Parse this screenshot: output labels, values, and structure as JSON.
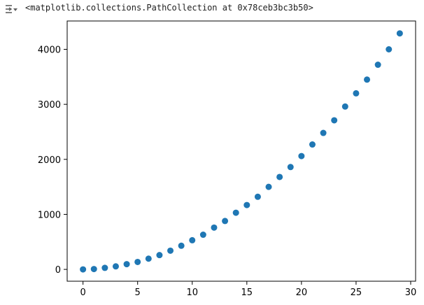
{
  "cell_output": {
    "toggle_icon": "collapse-output-icon",
    "repr_text": "<matplotlib.collections.PathCollection at 0x78ceb3bc3b50>"
  },
  "colors": {
    "marker": "#1f77b4",
    "axes": "#000000",
    "repr_text": "#212121"
  },
  "chart_data": {
    "type": "scatter",
    "title": "",
    "xlabel": "",
    "ylabel": "",
    "xlim": [
      -1.45,
      30.45
    ],
    "ylim": [
      -215,
      4515
    ],
    "xticks": [
      0,
      5,
      10,
      15,
      20,
      25,
      30
    ],
    "yticks": [
      0,
      1000,
      2000,
      3000,
      4000
    ],
    "grid": false,
    "legend": "none",
    "x": [
      0,
      1,
      2,
      3,
      4,
      5,
      6,
      7,
      8,
      9,
      10,
      11,
      12,
      13,
      14,
      15,
      16,
      17,
      18,
      19,
      20,
      21,
      22,
      23,
      24,
      25,
      26,
      27,
      28,
      29
    ],
    "y": [
      0,
      6,
      28,
      55,
      95,
      135,
      195,
      260,
      340,
      430,
      530,
      630,
      760,
      880,
      1030,
      1170,
      1320,
      1500,
      1680,
      1860,
      2060,
      2270,
      2480,
      2710,
      2960,
      3200,
      3450,
      3720,
      4000,
      4290
    ]
  }
}
